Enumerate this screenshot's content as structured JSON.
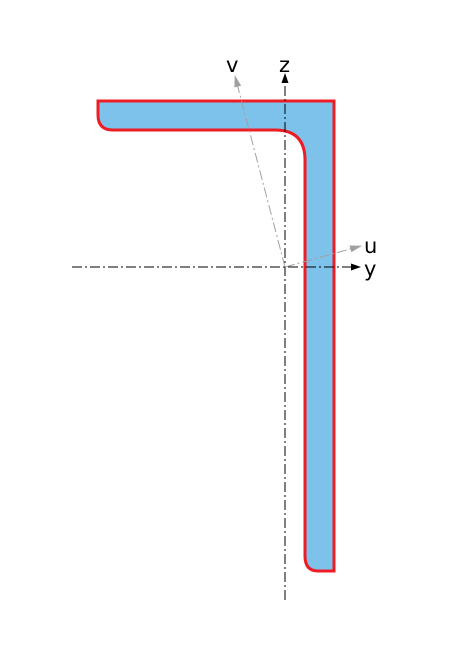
{
  "labels": {
    "z": "z",
    "y": "y",
    "u": "u",
    "v": "v"
  },
  "colors": {
    "section_fill": "#7dc2ea",
    "section_outline": "#ee1c25",
    "centroid_axis": "#000000",
    "principal_axis": "#a0a0a0"
  },
  "shape": "angle-section"
}
